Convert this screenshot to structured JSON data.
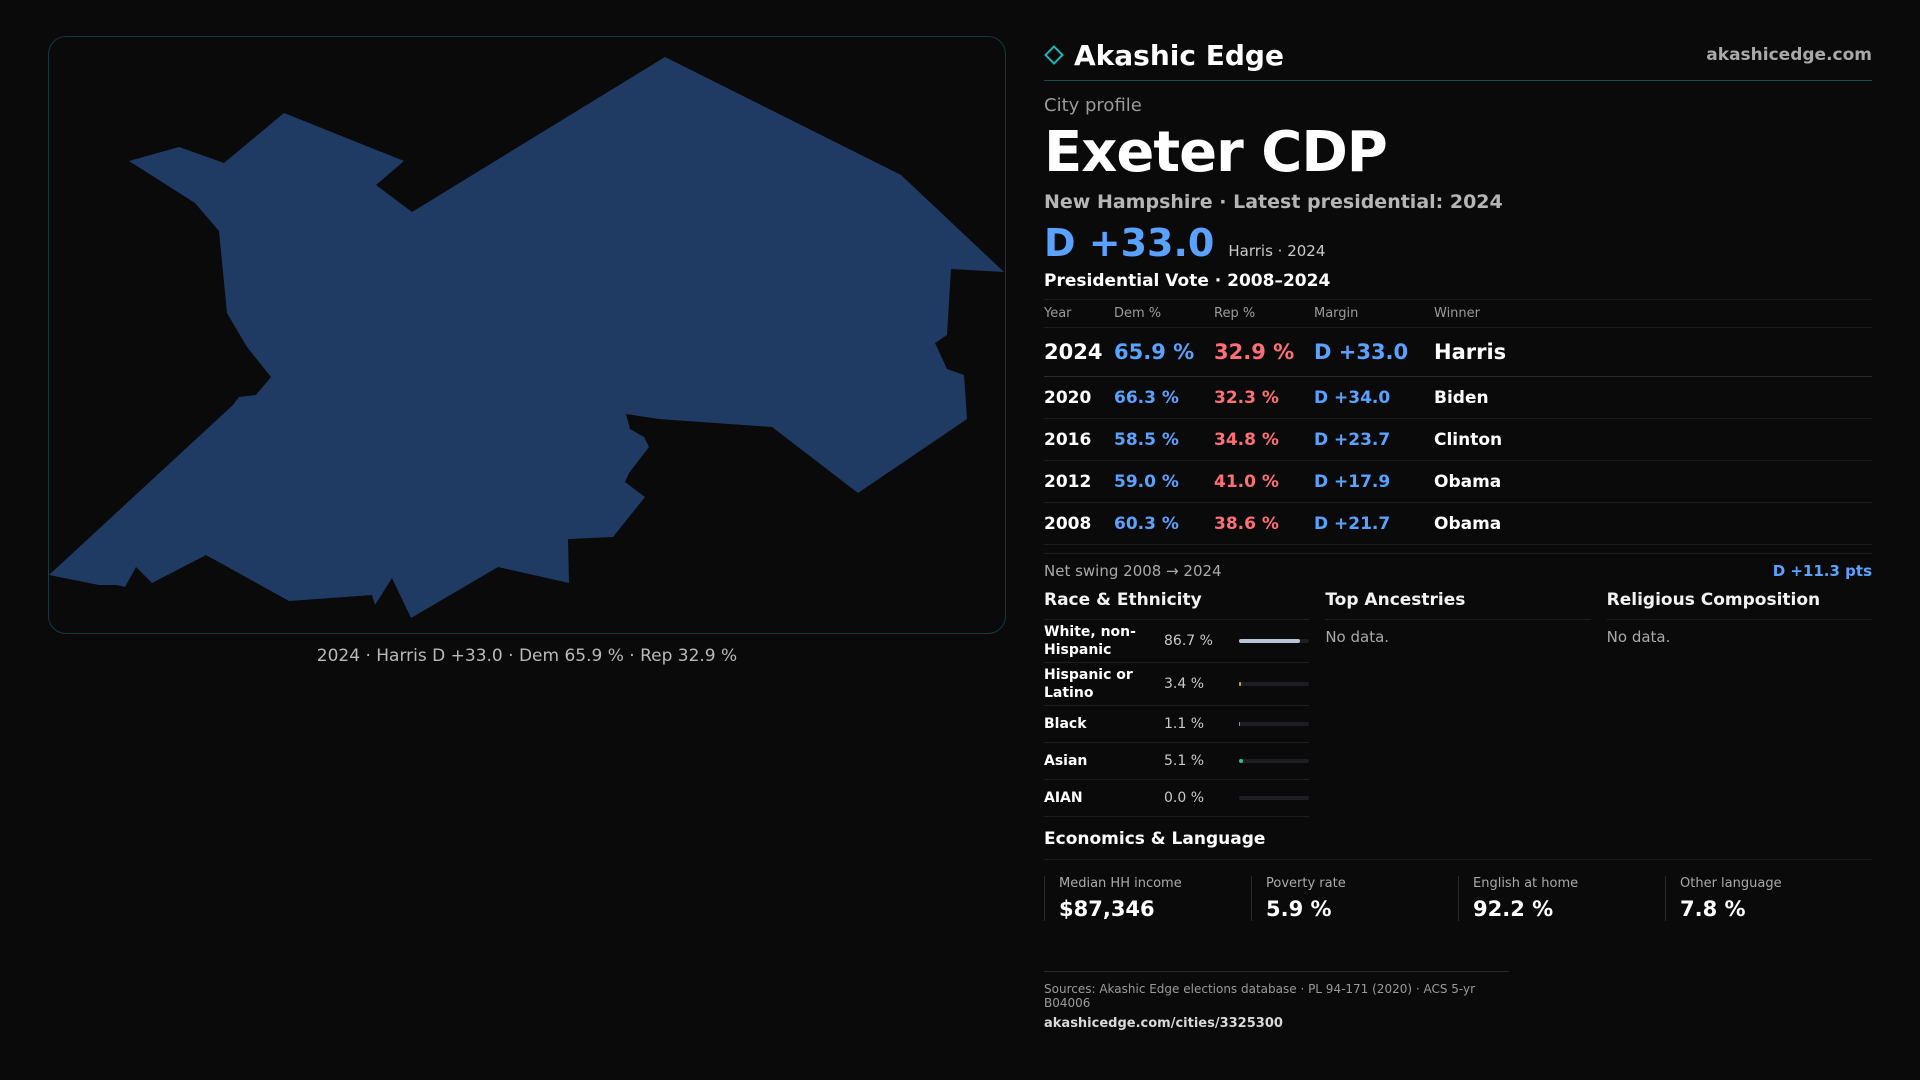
{
  "brand": {
    "name": "Akashic Edge",
    "url": "akashicedge.com",
    "accent_color": "#1fb6b6"
  },
  "profile": {
    "eyebrow": "City profile",
    "title": "Exeter CDP",
    "subtitle": "New Hampshire · Latest presidential: 2024",
    "headline_margin": "D +33.0",
    "headline_note": "Harris · 2024"
  },
  "map": {
    "caption": "2024 · Harris D +33.0 · Dem 65.9 % · Rep 32.9 %",
    "fill_color": "#1f3b63"
  },
  "votes": {
    "title": "Presidential Vote · 2008–2024",
    "headers": [
      "Year",
      "Dem %",
      "Rep %",
      "Margin",
      "Winner"
    ],
    "rows": [
      {
        "year": "2024",
        "dem": "65.9 %",
        "rep": "32.9 %",
        "margin": "D +33.0",
        "winner": "Harris"
      },
      {
        "year": "2020",
        "dem": "66.3 %",
        "rep": "32.3 %",
        "margin": "D +34.0",
        "winner": "Biden"
      },
      {
        "year": "2016",
        "dem": "58.5 %",
        "rep": "34.8 %",
        "margin": "D +23.7",
        "winner": "Clinton"
      },
      {
        "year": "2012",
        "dem": "59.0 %",
        "rep": "41.0 %",
        "margin": "D +17.9",
        "winner": "Obama"
      },
      {
        "year": "2008",
        "dem": "60.3 %",
        "rep": "38.6 %",
        "margin": "D +21.7",
        "winner": "Obama"
      }
    ],
    "swing_label": "Net swing 2008 → 2024",
    "swing_value": "D +11.3 pts"
  },
  "race": {
    "title": "Race & Ethnicity",
    "rows": [
      {
        "label": "White, non-Hispanic",
        "pct": "86.7 %",
        "value": 86.7,
        "color": "#b9c4d6"
      },
      {
        "label": "Hispanic or Latino",
        "pct": "3.4 %",
        "value": 3.4,
        "color": "#e0a12a"
      },
      {
        "label": "Black",
        "pct": "1.1 %",
        "value": 1.1,
        "color": "#8a8fd8"
      },
      {
        "label": "Asian",
        "pct": "5.1 %",
        "value": 5.1,
        "color": "#2ec48a"
      },
      {
        "label": "AIAN",
        "pct": "0.0 %",
        "value": 0.0,
        "color": "#c47a2e"
      }
    ]
  },
  "ancestries": {
    "title": "Top Ancestries",
    "empty": "No data."
  },
  "religion": {
    "title": "Religious Composition",
    "empty": "No data."
  },
  "economics": {
    "title": "Economics & Language",
    "cells": [
      {
        "label": "Median HH income",
        "value": "$87,346"
      },
      {
        "label": "Poverty rate",
        "value": "5.9 %"
      },
      {
        "label": "English at home",
        "value": "92.2 %"
      },
      {
        "label": "Other language",
        "value": "7.8 %"
      }
    ]
  },
  "footer": {
    "sources": "Sources: Akashic Edge elections database · PL 94-171 (2020) · ACS 5-yr B04006",
    "url": "akashicedge.com/cities/3325300"
  }
}
